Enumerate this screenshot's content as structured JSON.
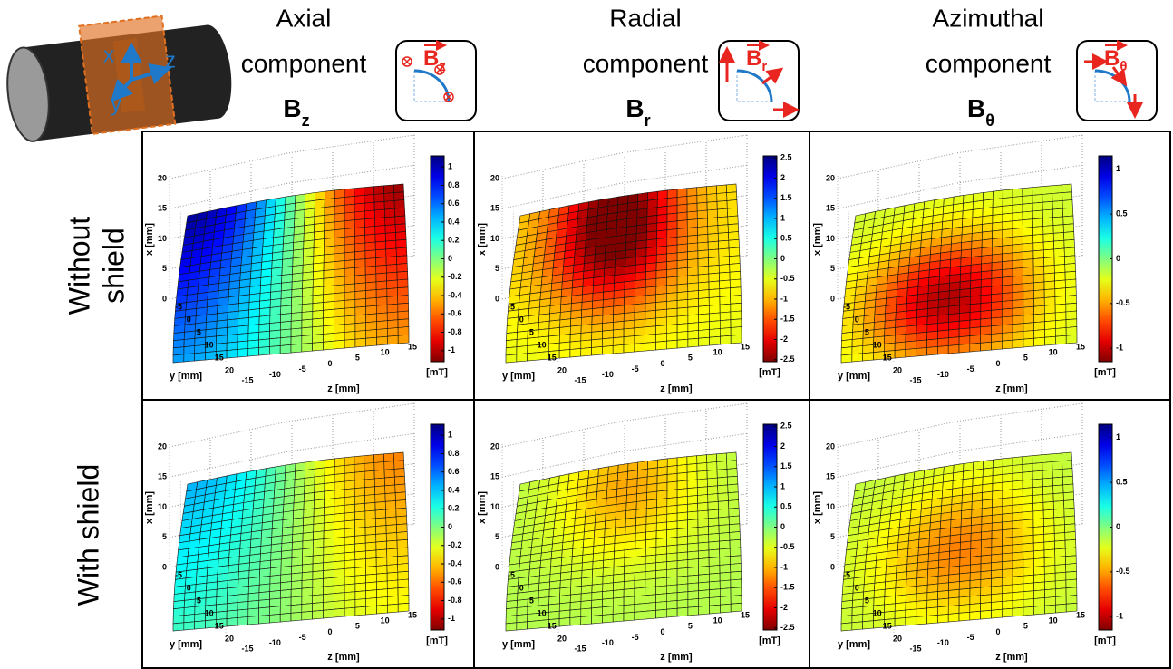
{
  "header": {
    "columns": [
      {
        "title": "Axial",
        "subtitle": "component",
        "symbol": "B",
        "subscript": "z"
      },
      {
        "title": "Radial",
        "subtitle": "component",
        "symbol": "B",
        "subscript": "r"
      },
      {
        "title": "Azimuthal",
        "subtitle": "component",
        "symbol": "B",
        "subscript": "θ"
      }
    ],
    "cylinder_axes": [
      "x",
      "z",
      "y"
    ]
  },
  "rows": [
    {
      "label_lines": [
        "Without",
        "shield"
      ]
    },
    {
      "label_lines": [
        "With shield"
      ]
    }
  ],
  "axes": {
    "x_label": "x [mm]",
    "y_label": "y [mm]",
    "z_label": "z [mm]",
    "xlim": [
      0,
      20
    ],
    "xticks": [
      0,
      5,
      10,
      15,
      20
    ],
    "ylim": [
      -5,
      20
    ],
    "yticks": [
      -5,
      0,
      5,
      10,
      15,
      20
    ],
    "zlim": [
      -15,
      15
    ],
    "zticks": [
      -15,
      -10,
      -5,
      0,
      5,
      10,
      15
    ],
    "colorbar_unit": "[mT]",
    "grid": true
  },
  "colorbars": [
    {
      "clim": [
        -1.12,
        1.12
      ],
      "ticks": [
        -1,
        -0.8,
        -0.6,
        -0.4,
        -0.2,
        0,
        0.2,
        0.4,
        0.6,
        0.8,
        1
      ]
    },
    {
      "clim": [
        -2.55,
        2.55
      ],
      "ticks": [
        -2.5,
        -2,
        -1.5,
        -1,
        -0.5,
        0,
        0.5,
        1,
        1.5,
        2,
        2.5
      ]
    },
    {
      "clim": [
        -1.15,
        1.15
      ],
      "ticks": [
        -1,
        -0.5,
        0,
        0.5,
        1
      ]
    }
  ]
}
